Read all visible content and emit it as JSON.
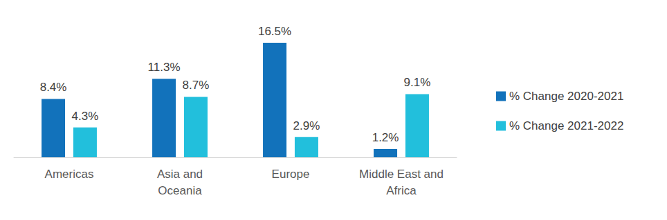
{
  "chart_data": {
    "type": "bar",
    "categories": [
      "Americas",
      "Asia and\nOceania",
      "Europe",
      "Middle East and\nAfrica"
    ],
    "series": [
      {
        "name": "% Change 2020-2021",
        "color": "#1272bb",
        "values": [
          8.4,
          11.3,
          16.5,
          1.2
        ],
        "value_labels": [
          "8.4%",
          "11.3%",
          "16.5%",
          "1.2%"
        ]
      },
      {
        "name": "% Change 2021-2022",
        "color": "#22bfdc",
        "values": [
          4.3,
          8.7,
          2.9,
          9.1
        ],
        "value_labels": [
          "4.3%",
          "8.7%",
          "2.9%",
          "9.1%"
        ]
      }
    ],
    "ylim": [
      0,
      16.5
    ],
    "grid": false,
    "legend": "right",
    "data_labels": true,
    "tick_labels": "x"
  }
}
